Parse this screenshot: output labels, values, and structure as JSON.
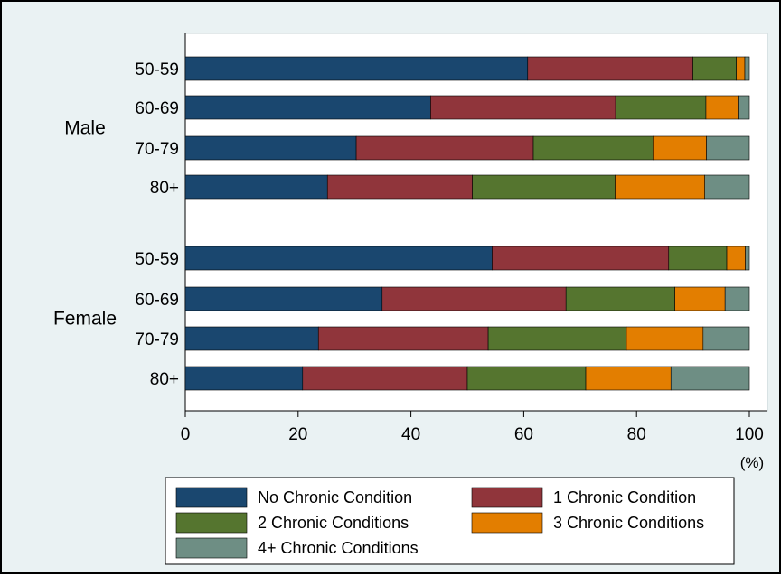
{
  "chart_data": {
    "type": "bar",
    "orientation": "horizontal",
    "stacked": true,
    "xlim": [
      0,
      100
    ],
    "x_ticks": [
      0,
      20,
      40,
      60,
      80,
      100
    ],
    "unit_label": "(%)",
    "grid": false,
    "legend_position": "bottom",
    "groups": [
      {
        "name": "Male",
        "categories": [
          "50-59",
          "60-69",
          "70-79",
          "80+"
        ],
        "series": [
          {
            "name": "No Chronic Condition",
            "color": "#1a476f",
            "values": [
              60.7,
              43.5,
              30.3,
              25.2
            ]
          },
          {
            "name": "1 Chronic Condition",
            "color": "#90353b",
            "values": [
              29.3,
              32.8,
              31.4,
              25.7
            ]
          },
          {
            "name": "2 Chronic Conditions",
            "color": "#55752f",
            "values": [
              7.7,
              16.0,
              21.2,
              25.3
            ]
          },
          {
            "name": "3 Chronic Conditions",
            "color": "#e37e00",
            "values": [
              1.5,
              5.7,
              9.5,
              15.9
            ]
          },
          {
            "name": "4+ Chronic Conditions",
            "color": "#6e8e84",
            "values": [
              0.8,
              2.0,
              7.6,
              7.9
            ]
          }
        ]
      },
      {
        "name": "Female",
        "categories": [
          "50-59",
          "60-69",
          "70-79",
          "80+"
        ],
        "series": [
          {
            "name": "No Chronic Condition",
            "color": "#1a476f",
            "values": [
              54.4,
              34.9,
              23.6,
              20.8
            ]
          },
          {
            "name": "1 Chronic Condition",
            "color": "#90353b",
            "values": [
              31.3,
              32.6,
              30.1,
              29.2
            ]
          },
          {
            "name": "2 Chronic Conditions",
            "color": "#55752f",
            "values": [
              10.3,
              19.3,
              24.5,
              21.0
            ]
          },
          {
            "name": "3 Chronic Conditions",
            "color": "#e37e00",
            "values": [
              3.3,
              8.9,
              13.6,
              15.1
            ]
          },
          {
            "name": "4+ Chronic Conditions",
            "color": "#6e8e84",
            "values": [
              0.7,
              4.3,
              8.2,
              13.9
            ]
          }
        ]
      }
    ]
  }
}
